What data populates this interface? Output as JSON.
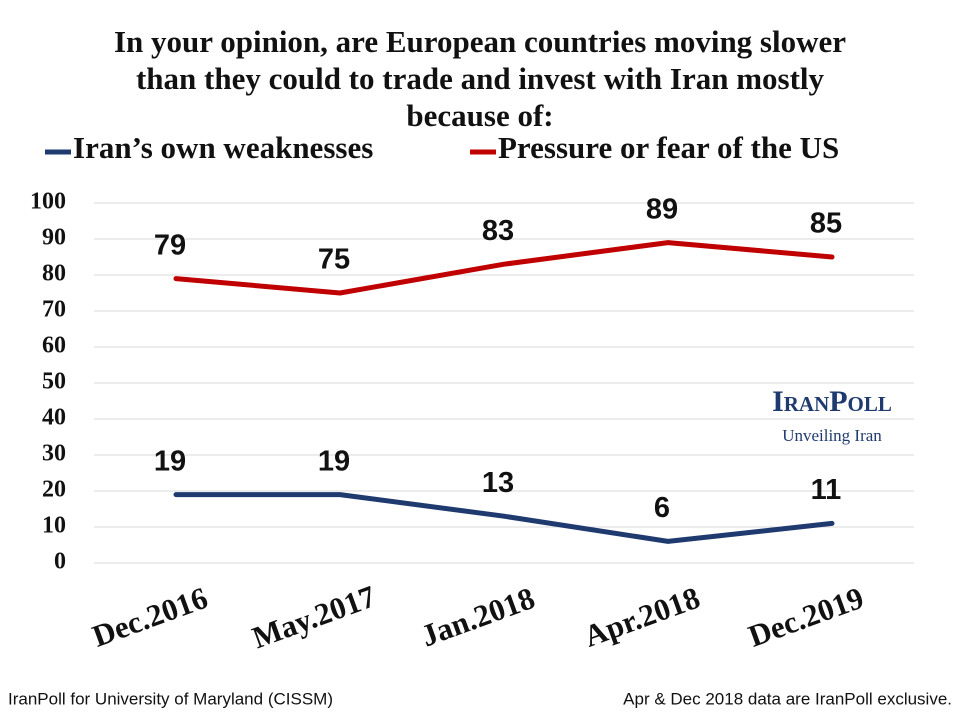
{
  "chart_data": {
    "type": "line",
    "title": [
      "In your opinion, are European countries moving slower",
      "than they could to trade and invest with Iran mostly",
      "because of:"
    ],
    "categories": [
      "Dec.2016",
      "May.2017",
      "Jan.2018",
      "Apr.2018",
      "Dec.2019"
    ],
    "series": [
      {
        "name": "Iran’s own weaknesses",
        "color": "#1f3a6e",
        "values": [
          19,
          19,
          13,
          6,
          11
        ]
      },
      {
        "name": "Pressure or fear of the US",
        "color": "#c00000",
        "values": [
          79,
          75,
          83,
          89,
          85
        ]
      }
    ],
    "ylim": [
      0,
      100
    ],
    "yticks": [
      0,
      10,
      20,
      30,
      40,
      50,
      60,
      70,
      80,
      90,
      100
    ],
    "grid": true,
    "watermark": {
      "brand": "IranPoll",
      "tagline": "Unveiling Iran"
    },
    "source": "IranPoll for University of Maryland (CISSM)",
    "note": "Apr & Dec 2018 data are IranPoll exclusive."
  }
}
